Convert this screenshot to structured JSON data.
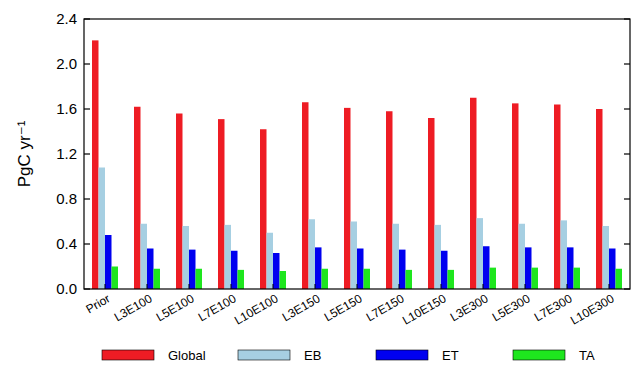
{
  "chart_data": {
    "type": "bar",
    "y_label": "PgC yr⁻¹",
    "categories": [
      "Prior",
      "L3E100",
      "L5E100",
      "L7E100",
      "L10E100",
      "L3E150",
      "L5E150",
      "L7E150",
      "L10E150",
      "L3E300",
      "L5E300",
      "L7E300",
      "L10E300"
    ],
    "series": [
      {
        "name": "Global",
        "color": "#ee1c24",
        "values": [
          2.21,
          1.62,
          1.56,
          1.51,
          1.42,
          1.66,
          1.61,
          1.58,
          1.52,
          1.7,
          1.65,
          1.64,
          1.6
        ]
      },
      {
        "name": "EB",
        "color": "#a6cfe2",
        "values": [
          1.08,
          0.58,
          0.56,
          0.57,
          0.5,
          0.62,
          0.6,
          0.58,
          0.57,
          0.63,
          0.58,
          0.61,
          0.56
        ]
      },
      {
        "name": "ET",
        "color": "#0000f0",
        "values": [
          0.48,
          0.36,
          0.35,
          0.34,
          0.32,
          0.37,
          0.36,
          0.35,
          0.34,
          0.38,
          0.37,
          0.37,
          0.36
        ]
      },
      {
        "name": "TA",
        "color": "#1ee61e",
        "values": [
          0.2,
          0.18,
          0.18,
          0.17,
          0.16,
          0.18,
          0.18,
          0.17,
          0.17,
          0.19,
          0.19,
          0.19,
          0.18
        ]
      }
    ],
    "ylim": [
      0,
      2.4
    ],
    "yticks": [
      {
        "value": 0,
        "label": "0.0"
      },
      0.4,
      0.8,
      1.2,
      1.6,
      {
        "value": 2,
        "label": "2.0"
      },
      2.4
    ],
    "legend": "bottom",
    "grid": false
  }
}
